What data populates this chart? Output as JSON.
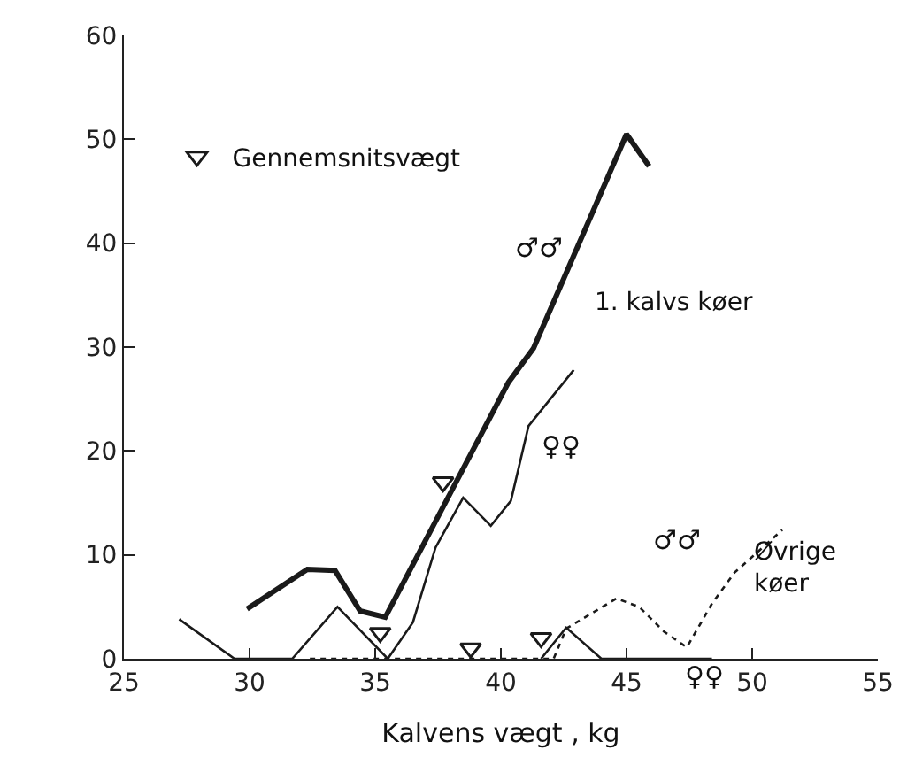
{
  "chart_data": {
    "type": "line",
    "xlabel": "Kalvens vægt , kg",
    "xlim": [
      25,
      55
    ],
    "xticks": [
      25,
      30,
      35,
      40,
      45,
      50,
      55
    ],
    "ylim": [
      0,
      60
    ],
    "yticks": [
      0,
      10,
      20,
      30,
      40,
      50,
      60
    ],
    "legend": "top left",
    "marker": "none",
    "series": [
      {
        "name": "♂♂",
        "color": "#1a1a1a",
        "line_style": "solid",
        "x": [
          29.9,
          32.3,
          33.4,
          34.4,
          35.4,
          40.3,
          41.3,
          45.0,
          45.9
        ],
        "values": [
          4.8,
          8.6,
          8.5,
          4.6,
          4.0,
          26.6,
          29.9,
          50.5,
          47.4
        ]
      },
      {
        "name": "♀♀",
        "color": "#1a1a1a",
        "line_style": "solid",
        "x": [
          27.2,
          29.4,
          31.7,
          33.5,
          35.5,
          36.5,
          37.4,
          38.5,
          39.6,
          40.4,
          41.1,
          42.9
        ],
        "values": [
          3.8,
          0,
          0,
          5.0,
          0,
          3.5,
          10.7,
          15.5,
          12.8,
          15.2,
          22.4,
          27.8
        ]
      },
      {
        "name": "♂♂",
        "color": "#1a1a1a",
        "line_style": "dotted",
        "x": [
          32.4,
          42.1,
          42.6,
          44.6,
          45.5,
          46.5,
          47.4,
          48.4,
          49.3,
          51.2
        ],
        "values": [
          0,
          0,
          2.9,
          5.8,
          5.0,
          2.6,
          1.1,
          5.3,
          8.3,
          12.4
        ]
      },
      {
        "name": "♀♀",
        "color": "#1a1a1a",
        "line_style": "solid",
        "x": [
          41.6,
          42.6,
          44.0,
          48.4
        ],
        "values": [
          0,
          3.0,
          0,
          0
        ]
      },
      {
        "name": "Gennemsnitsvægt",
        "type": "scatter",
        "marker": "triangle",
        "color": "#1a1a1a",
        "x": [
          37.7,
          35.2,
          38.8,
          41.6
        ],
        "values": [
          17,
          2.5,
          1,
          2
        ]
      }
    ],
    "annotations": [
      "1. kalvs køer",
      "Øvrige\nkøer"
    ]
  }
}
